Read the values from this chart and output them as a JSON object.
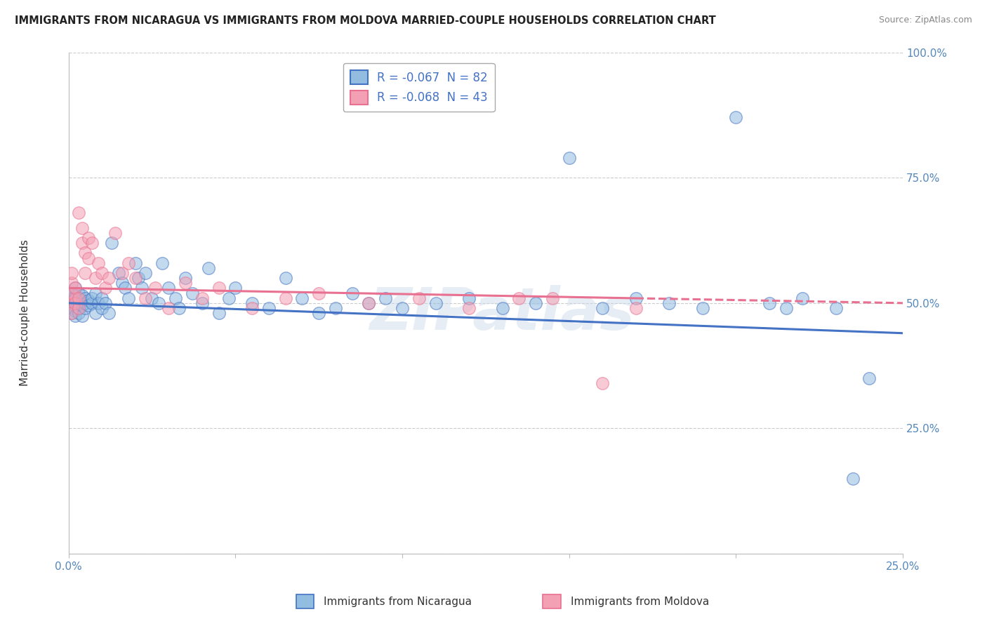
{
  "title": "IMMIGRANTS FROM NICARAGUA VS IMMIGRANTS FROM MOLDOVA MARRIED-COUPLE HOUSEHOLDS CORRELATION CHART",
  "source": "Source: ZipAtlas.com",
  "legend_label_nic": "R = -0.067  N = 82",
  "legend_label_mol": "R = -0.068  N = 43",
  "ylabel": "Married-couple Households",
  "xlim": [
    0.0,
    0.25
  ],
  "ylim": [
    0.0,
    1.0
  ],
  "xticks": [
    0.0,
    0.05,
    0.1,
    0.15,
    0.2,
    0.25
  ],
  "yticks": [
    0.0,
    0.25,
    0.5,
    0.75,
    1.0
  ],
  "watermark": "ZIPatlas",
  "nicaragua_color": "#92bce0",
  "moldova_color": "#f4a0b4",
  "nicaragua_trend_color": "#4472c4",
  "moldova_trend_color": "#e87090",
  "background_color": "#ffffff",
  "grid_color": "#cccccc",
  "nicaragua_x": [
    0.001,
    0.001,
    0.001,
    0.001,
    0.001,
    0.002,
    0.002,
    0.002,
    0.002,
    0.002,
    0.002,
    0.003,
    0.003,
    0.003,
    0.003,
    0.003,
    0.004,
    0.004,
    0.004,
    0.004,
    0.005,
    0.005,
    0.005,
    0.006,
    0.006,
    0.007,
    0.007,
    0.008,
    0.008,
    0.009,
    0.01,
    0.01,
    0.011,
    0.012,
    0.013,
    0.015,
    0.016,
    0.017,
    0.018,
    0.02,
    0.021,
    0.022,
    0.023,
    0.025,
    0.027,
    0.028,
    0.03,
    0.032,
    0.033,
    0.035,
    0.037,
    0.04,
    0.042,
    0.045,
    0.048,
    0.05,
    0.055,
    0.06,
    0.065,
    0.07,
    0.075,
    0.08,
    0.085,
    0.09,
    0.095,
    0.1,
    0.11,
    0.12,
    0.13,
    0.14,
    0.15,
    0.16,
    0.17,
    0.18,
    0.19,
    0.2,
    0.21,
    0.215,
    0.22,
    0.23,
    0.235,
    0.24
  ],
  "nicaragua_y": [
    0.5,
    0.49,
    0.51,
    0.48,
    0.52,
    0.495,
    0.505,
    0.515,
    0.485,
    0.475,
    0.53,
    0.49,
    0.5,
    0.51,
    0.48,
    0.52,
    0.495,
    0.505,
    0.475,
    0.515,
    0.49,
    0.5,
    0.51,
    0.505,
    0.495,
    0.5,
    0.51,
    0.48,
    0.52,
    0.5,
    0.49,
    0.51,
    0.5,
    0.48,
    0.62,
    0.56,
    0.54,
    0.53,
    0.51,
    0.58,
    0.55,
    0.53,
    0.56,
    0.51,
    0.5,
    0.58,
    0.53,
    0.51,
    0.49,
    0.55,
    0.52,
    0.5,
    0.57,
    0.48,
    0.51,
    0.53,
    0.5,
    0.49,
    0.55,
    0.51,
    0.48,
    0.49,
    0.52,
    0.5,
    0.51,
    0.49,
    0.5,
    0.51,
    0.49,
    0.5,
    0.79,
    0.49,
    0.51,
    0.5,
    0.49,
    0.87,
    0.5,
    0.49,
    0.51,
    0.49,
    0.15,
    0.35
  ],
  "moldova_x": [
    0.001,
    0.001,
    0.001,
    0.001,
    0.001,
    0.002,
    0.002,
    0.002,
    0.003,
    0.003,
    0.003,
    0.004,
    0.004,
    0.005,
    0.005,
    0.006,
    0.006,
    0.007,
    0.008,
    0.009,
    0.01,
    0.011,
    0.012,
    0.014,
    0.016,
    0.018,
    0.02,
    0.023,
    0.026,
    0.03,
    0.035,
    0.04,
    0.045,
    0.055,
    0.065,
    0.075,
    0.09,
    0.105,
    0.12,
    0.135,
    0.145,
    0.16,
    0.17
  ],
  "moldova_y": [
    0.5,
    0.52,
    0.48,
    0.54,
    0.56,
    0.51,
    0.53,
    0.5,
    0.49,
    0.51,
    0.68,
    0.65,
    0.62,
    0.6,
    0.56,
    0.63,
    0.59,
    0.62,
    0.55,
    0.58,
    0.56,
    0.53,
    0.55,
    0.64,
    0.56,
    0.58,
    0.55,
    0.51,
    0.53,
    0.49,
    0.54,
    0.51,
    0.53,
    0.49,
    0.51,
    0.52,
    0.5,
    0.51,
    0.49,
    0.51,
    0.51,
    0.34,
    0.49
  ],
  "nic_trend_y0": 0.5,
  "nic_trend_y1": 0.44,
  "mol_trend_y0": 0.53,
  "mol_trend_y1": 0.5
}
